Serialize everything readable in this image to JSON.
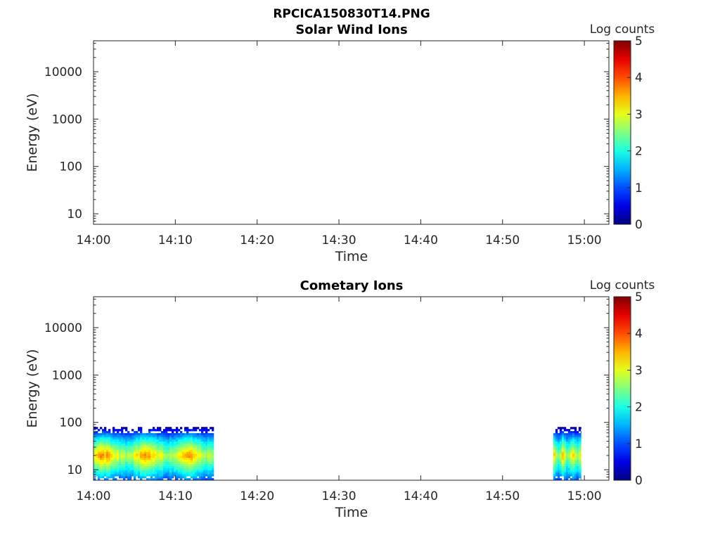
{
  "figure_title": "RPCICA150830T14.PNG",
  "chart_data": [
    {
      "type": "heatmap",
      "title": "Solar Wind Ions",
      "xlabel": "Time",
      "ylabel": "Energy (eV)",
      "colorbar_label": "Log counts",
      "x_range": [
        "14:00",
        "15:03"
      ],
      "x_ticks": [
        "14:00",
        "14:10",
        "14:20",
        "14:30",
        "14:40",
        "14:50",
        "15:00"
      ],
      "y_scale": "log",
      "y_range": [
        6,
        45000
      ],
      "y_ticks": [
        10,
        100,
        1000,
        10000
      ],
      "y_tick_labels": [
        "10",
        "100",
        "1000",
        "10000"
      ],
      "color_range": [
        0,
        5
      ],
      "colorbar_ticks": [
        "0",
        "1",
        "2",
        "3",
        "4",
        "5"
      ],
      "colormap": "jet",
      "segments": []
    },
    {
      "type": "heatmap",
      "title": "Cometary Ions",
      "xlabel": "Time",
      "ylabel": "Energy (eV)",
      "colorbar_label": "Log counts",
      "x_range": [
        "14:00",
        "15:03"
      ],
      "x_ticks": [
        "14:00",
        "14:10",
        "14:20",
        "14:30",
        "14:40",
        "14:50",
        "15:00"
      ],
      "y_scale": "log",
      "y_range": [
        6,
        45000
      ],
      "y_ticks": [
        10,
        100,
        1000,
        10000
      ],
      "y_tick_labels": [
        "10",
        "100",
        "1000",
        "10000"
      ],
      "color_range": [
        0,
        5
      ],
      "colorbar_ticks": [
        "0",
        "1",
        "2",
        "3",
        "4",
        "5"
      ],
      "colormap": "jet",
      "segments": [
        {
          "start": "14:00",
          "end": "14:14.7",
          "energy_range": [
            6,
            80
          ],
          "peak_energy": 20,
          "peak_log_counts": 3.7
        },
        {
          "start": "14:56.2",
          "end": "14:59.6",
          "energy_range": [
            6,
            80
          ],
          "peak_energy": 20,
          "peak_log_counts": 3.5
        }
      ]
    }
  ],
  "colors": {
    "axis": "#262626",
    "background": "#ffffff"
  }
}
